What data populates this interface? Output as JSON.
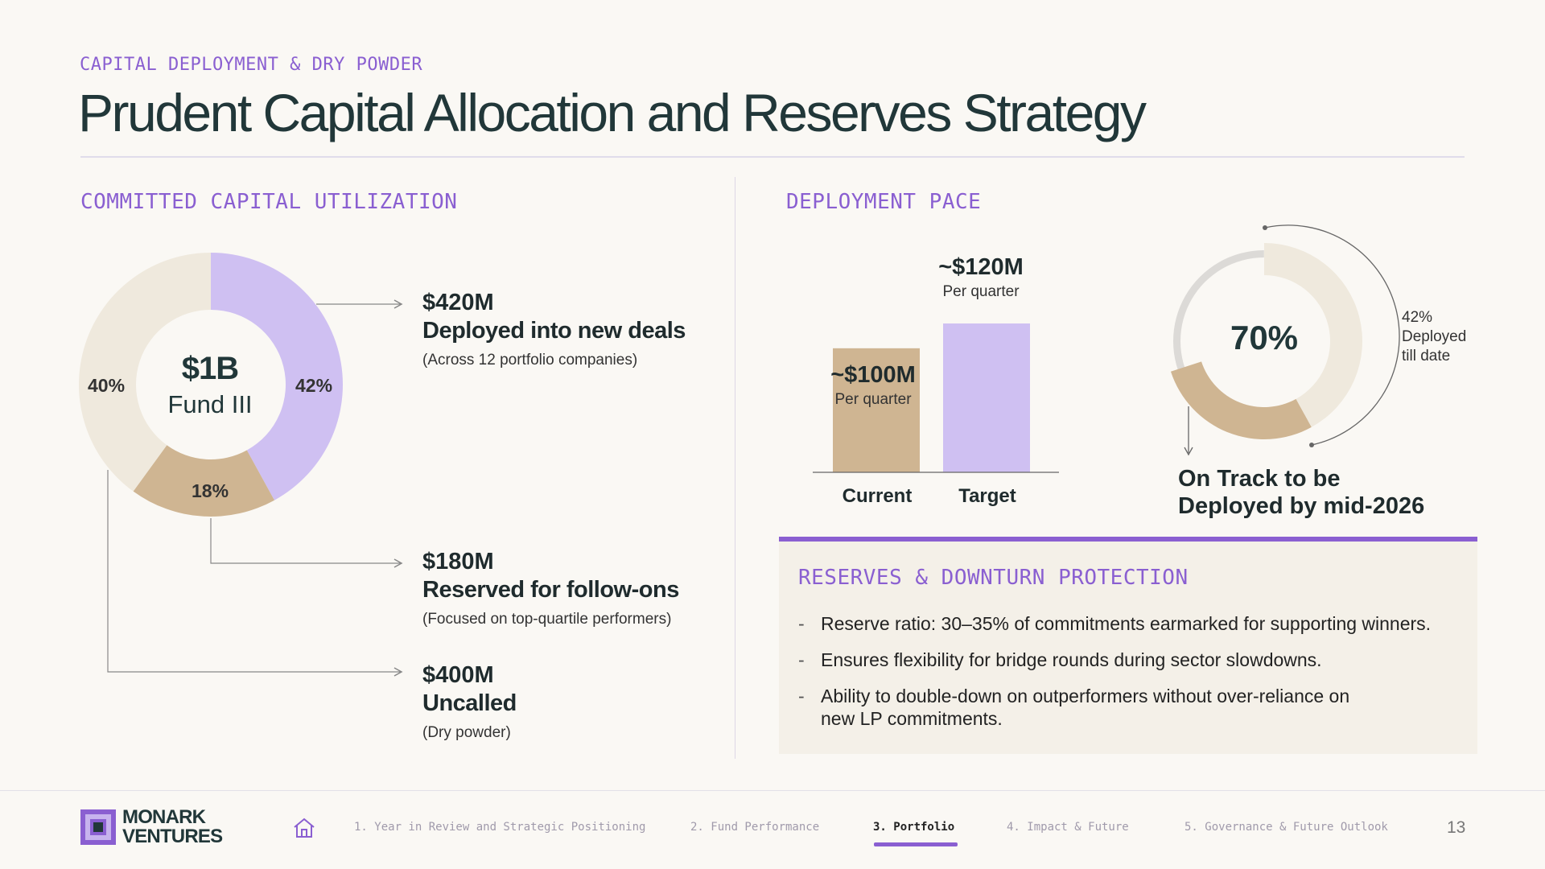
{
  "header": {
    "eyebrow": "CAPITAL DEPLOYMENT & DRY POWDER",
    "title": "Prudent Capital Allocation and Reserves Strategy"
  },
  "utilization": {
    "section_label": "COMMITTED CAPITAL UTILIZATION",
    "center_amount": "$1B",
    "center_label": "Fund III",
    "slices": [
      {
        "label": "42%",
        "value": 42,
        "color": "#cfc0f2"
      },
      {
        "label": "18%",
        "value": 18,
        "color": "#cfb592"
      },
      {
        "label": "40%",
        "value": 40,
        "color": "#efe9dd"
      }
    ],
    "callouts": [
      {
        "amount": "$420M",
        "description": "Deployed into new deals",
        "note": "(Across 12 portfolio companies)"
      },
      {
        "amount": "$180M",
        "description": "Reserved for follow-ons",
        "note": "(Focused on top-quartile performers)"
      },
      {
        "amount": "$400M",
        "description": "Uncalled",
        "note": "(Dry powder)"
      }
    ]
  },
  "pace": {
    "section_label": "DEPLOYMENT PACE",
    "bars": [
      {
        "category": "Current",
        "value_label": "~$100M",
        "sub_label": "Per quarter",
        "value": 100,
        "color": "#cfb592"
      },
      {
        "category": "Target",
        "value_label": "~$120M",
        "sub_label": "Per quarter",
        "value": 120,
        "color": "#cfc0f2"
      }
    ],
    "ring": {
      "center": "70%",
      "progress": 0.7,
      "deployed_fraction": 0.42,
      "side_note_lines": [
        "42%",
        "Deployed",
        "till date"
      ],
      "caption_lines": [
        "On Track to be",
        "Deployed by mid-2026"
      ]
    }
  },
  "reserves": {
    "title": "RESERVES & DOWNTURN PROTECTION",
    "dash": "-",
    "items": [
      "Reserve ratio: 30–35% of commitments earmarked for supporting winners.",
      "Ensures flexibility for bridge rounds during sector slowdowns.",
      "Ability to double-down on outperformers without over-reliance on new LP commitments."
    ]
  },
  "footer": {
    "logo_line1": "MONARK",
    "logo_line2": "VENTURES",
    "nav": [
      "1. Year in Review and Strategic Positioning",
      "2. Fund Performance",
      "3. Portfolio",
      "4. Impact & Future",
      "5. Governance & Future Outlook"
    ],
    "active_index": 2,
    "page_number": "13"
  },
  "colors": {
    "accent_purple": "#8a5fd1",
    "lavender": "#cfc0f2",
    "tan": "#cfb592",
    "cream": "#efe9dd",
    "dark_teal": "#213739"
  }
}
